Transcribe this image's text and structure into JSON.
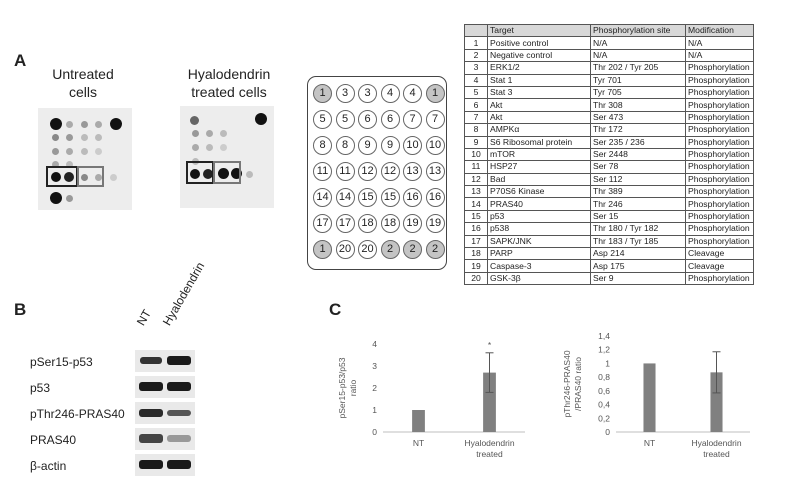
{
  "panels": {
    "a": "A",
    "b": "B",
    "c": "C"
  },
  "array_captions": {
    "untreated": [
      "Untreated",
      "cells"
    ],
    "treated": [
      "Hyalodendrin",
      "treated cells"
    ]
  },
  "well_map": [
    [
      "1",
      "3",
      "3",
      "4",
      "4",
      "1"
    ],
    [
      "5",
      "5",
      "6",
      "6",
      "7",
      "7"
    ],
    [
      "8",
      "8",
      "9",
      "9",
      "10",
      "10"
    ],
    [
      "11",
      "11",
      "12",
      "12",
      "13",
      "13"
    ],
    [
      "14",
      "14",
      "15",
      "15",
      "16",
      "16"
    ],
    [
      "17",
      "17",
      "18",
      "18",
      "19",
      "19"
    ],
    [
      "1",
      "20",
      "20",
      "2",
      "2",
      "2"
    ]
  ],
  "gray_wells": [
    "0-0",
    "0-5",
    "6-0",
    "6-3",
    "6-4",
    "6-5"
  ],
  "table": {
    "headers": [
      "",
      "Target",
      "Phosphorylation site",
      "Modification"
    ],
    "rows": [
      [
        "1",
        "Positive control",
        "N/A",
        "N/A"
      ],
      [
        "2",
        "Negative control",
        "N/A",
        "N/A"
      ],
      [
        "3",
        "ERK1/2",
        "Thr 202 / Tyr 205",
        "Phosphorylation"
      ],
      [
        "4",
        "Stat 1",
        "Tyr 701",
        "Phosphorylation"
      ],
      [
        "5",
        "Stat 3",
        "Tyr 705",
        "Phosphorylation"
      ],
      [
        "6",
        "Akt",
        "Thr 308",
        "Phosphorylation"
      ],
      [
        "7",
        "Akt",
        "Ser 473",
        "Phosphorylation"
      ],
      [
        "8",
        "AMPKα",
        "Thr 172",
        "Phosphorylation"
      ],
      [
        "9",
        "S6 Ribosomal protein",
        "Ser 235 / 236",
        "Phosphorylation"
      ],
      [
        "10",
        "mTOR",
        "Ser 2448",
        "Phosphorylation"
      ],
      [
        "11",
        "HSP27",
        "Ser 78",
        "Phosphorylation"
      ],
      [
        "12",
        "Bad",
        "Ser 112",
        "Phosphorylation"
      ],
      [
        "13",
        "P70S6 Kinase",
        "Thr 389",
        "Phosphorylation"
      ],
      [
        "14",
        "PRAS40",
        "Thr 246",
        "Phosphorylation"
      ],
      [
        "15",
        "p53",
        "Ser 15",
        "Phosphorylation"
      ],
      [
        "16",
        "p538",
        "Thr 180 / Tyr 182",
        "Phosphorylation"
      ],
      [
        "17",
        "SAPK/JNK",
        "Thr 183 / Tyr 185",
        "Phosphorylation"
      ],
      [
        "18",
        "PARP",
        "Asp 214",
        "Cleavage"
      ],
      [
        "19",
        "Caspase-3",
        "Asp 175",
        "Cleavage"
      ],
      [
        "20",
        "GSK-3β",
        "Ser 9",
        "Phosphorylation"
      ]
    ]
  },
  "western": {
    "lanes": [
      "NT",
      "Hyalodendrin"
    ],
    "rows": [
      "pSer15-p53",
      "p53",
      "pThr246-PRAS40",
      "PRAS40",
      "β-actin"
    ]
  },
  "colors": {
    "bar": "#808080",
    "error": "#555555",
    "axis": "#bfbfbf"
  },
  "chart_data": [
    {
      "type": "bar",
      "categories": [
        "NT",
        "Hyalodendrin treated"
      ],
      "values": [
        1.0,
        2.7
      ],
      "error": [
        0.0,
        0.9
      ],
      "annotations": [
        "",
        "*"
      ],
      "ylabel": "pSer15-p53/p53 ratio",
      "ylim": [
        0,
        4
      ],
      "yticks": [
        "0",
        "1",
        "2",
        "3",
        "4"
      ],
      "grid": false
    },
    {
      "type": "bar",
      "categories": [
        "NT",
        "Hyalodendrin treated"
      ],
      "values": [
        1.0,
        0.87
      ],
      "error": [
        0.0,
        0.3
      ],
      "ylabel": "pThr246-PRAS40 /PRAS40 ratio",
      "ylim": [
        0,
        1.4
      ],
      "yticks": [
        "0",
        "0,2",
        "0,4",
        "0,6",
        "0,8",
        "1",
        "1,2",
        "1,4"
      ],
      "grid": false
    }
  ]
}
